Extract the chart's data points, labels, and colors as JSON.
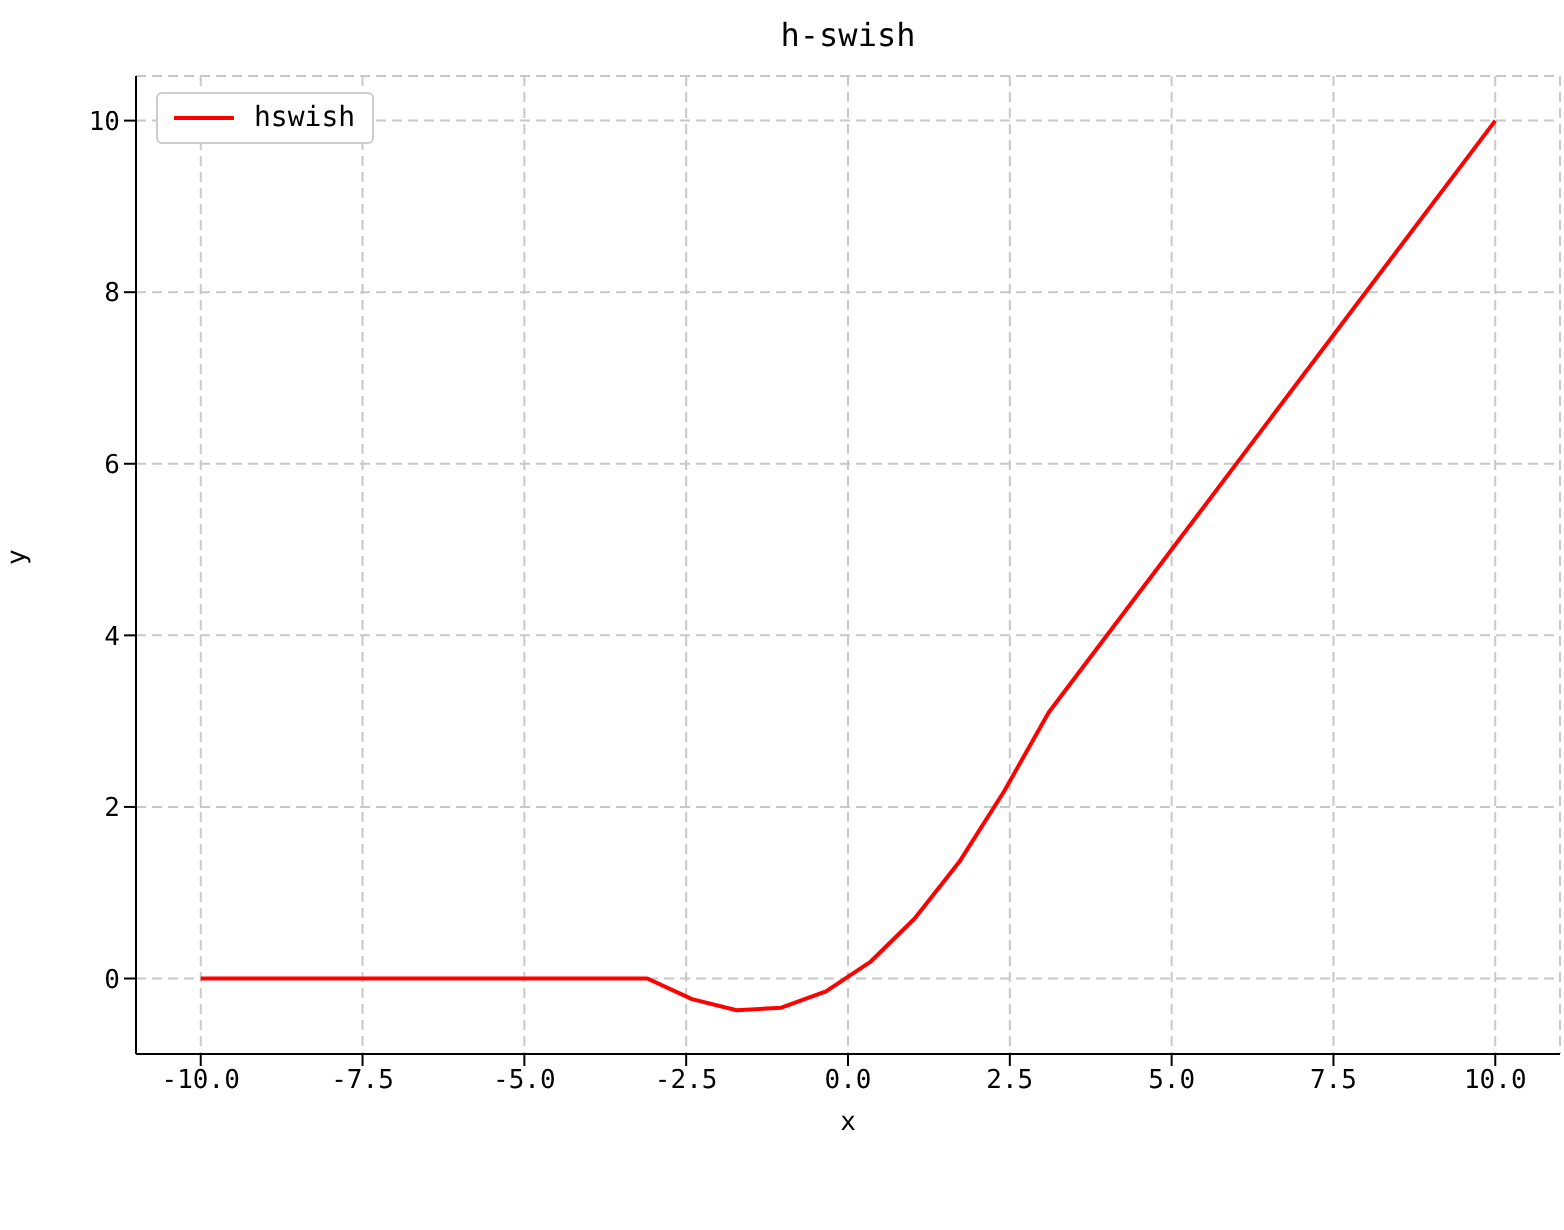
{
  "chart_data": {
    "type": "line",
    "title": "h-swish",
    "xlabel": "x",
    "ylabel": "y",
    "x": [
      -10,
      -3.1,
      -2.41,
      -1.72,
      -1.03,
      -0.34,
      0.34,
      1.03,
      1.72,
      2.41,
      3.1,
      10
    ],
    "series": [
      {
        "name": "hswish",
        "color": "#ff0000",
        "values": [
          0,
          0,
          -0.24,
          -0.37,
          -0.34,
          -0.15,
          0.19,
          0.7,
          1.36,
          2.18,
          3.1,
          10
        ]
      }
    ],
    "xlim": [
      -11,
      11
    ],
    "xticks": [
      {
        "value": -10,
        "label": "-10.0"
      },
      {
        "value": -7.5,
        "label": "-7.5"
      },
      {
        "value": -5,
        "label": "-5.0"
      },
      {
        "value": -2.5,
        "label": "-2.5"
      },
      {
        "value": 0,
        "label": "0.0"
      },
      {
        "value": 2.5,
        "label": "2.5"
      },
      {
        "value": 5,
        "label": "5.0"
      },
      {
        "value": 7.5,
        "label": "7.5"
      },
      {
        "value": 10,
        "label": "10.0"
      }
    ],
    "ylim": [
      -0.88,
      10.52
    ],
    "yticks": [
      0,
      2,
      4,
      6,
      8,
      10
    ],
    "grid": true,
    "legend": "top left",
    "marker": "none",
    "line_style": "solid"
  }
}
